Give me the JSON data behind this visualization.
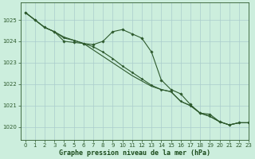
{
  "bg_color": "#cceedd",
  "grid_color": "#aacccc",
  "line_color": "#2d5a2d",
  "xlabel": "Graphe pression niveau de la mer (hPa)",
  "xlabel_color": "#1a4a1a",
  "ylim": [
    1019.4,
    1025.8
  ],
  "xlim": [
    -0.5,
    23
  ],
  "yticks": [
    1020,
    1021,
    1022,
    1023,
    1024,
    1025
  ],
  "xticks": [
    0,
    1,
    2,
    3,
    4,
    5,
    6,
    7,
    8,
    9,
    10,
    11,
    12,
    13,
    14,
    15,
    16,
    17,
    18,
    19,
    20,
    21,
    22,
    23
  ],
  "series": [
    [
      1025.35,
      1025.0,
      1024.65,
      1024.45,
      1024.0,
      1023.95,
      1023.9,
      1023.85,
      1024.0,
      1024.45,
      1024.55,
      1024.35,
      1024.15,
      1023.5,
      1022.2,
      1021.75,
      1021.55,
      1021.05,
      1020.65,
      1020.6,
      1020.25,
      1020.1,
      1020.2,
      1020.2
    ],
    [
      1025.35,
      1025.0,
      1024.65,
      1024.45,
      1024.2,
      1024.05,
      1023.9,
      1023.75,
      1023.5,
      1023.2,
      1022.85,
      1022.55,
      1022.25,
      1021.95,
      1021.75,
      1021.65,
      1021.2,
      1021.0,
      1020.65,
      1020.5,
      1020.25,
      1020.1,
      1020.2,
      1020.2
    ],
    [
      1025.35,
      1025.0,
      1024.65,
      1024.45,
      1024.15,
      1024.05,
      1023.9,
      1023.6,
      1023.3,
      1023.0,
      1022.7,
      1022.4,
      1022.15,
      1021.9,
      1021.75,
      1021.65,
      1021.2,
      1021.0,
      1020.65,
      1020.5,
      1020.25,
      1020.1,
      1020.2,
      1020.2
    ]
  ],
  "tick_fontsize": 5,
  "label_fontsize": 6,
  "figsize": [
    3.2,
    2.0
  ],
  "dpi": 100
}
